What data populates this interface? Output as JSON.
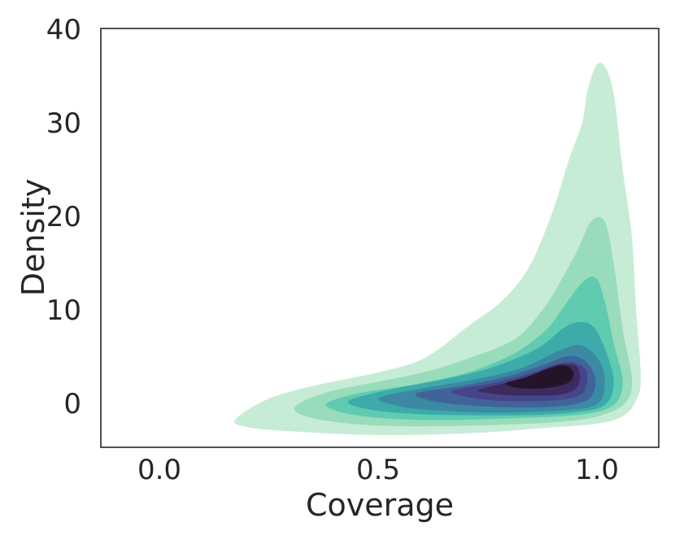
{
  "chart_data": {
    "type": "kde-2d-filled-contour",
    "title": "",
    "xlabel": "Coverage",
    "ylabel": "Density",
    "xlim": [
      -0.12,
      1.12
    ],
    "ylim": [
      -4.5,
      40
    ],
    "xticks": [
      "0.0",
      "0.5",
      "1.0"
    ],
    "yticks": [
      "0",
      "10",
      "20",
      "30",
      "40"
    ],
    "grid": false,
    "colors": [
      "#c7ecd5",
      "#98dcbb",
      "#5fcbb0",
      "#3cabaa",
      "#3b89a3",
      "#40649a",
      "#47458a",
      "#3d2a5f",
      "#24142a"
    ],
    "levels": [
      {
        "level": 1,
        "color": "#c7ecd5",
        "outline": [
          [
            0.18,
            -1.5
          ],
          [
            0.25,
            0.6
          ],
          [
            0.35,
            2.0
          ],
          [
            0.5,
            3.5
          ],
          [
            0.6,
            5.0
          ],
          [
            0.7,
            8.5
          ],
          [
            0.77,
            11.0
          ],
          [
            0.83,
            14.5
          ],
          [
            0.88,
            20.0
          ],
          [
            0.92,
            26.0
          ],
          [
            0.95,
            30.0
          ],
          [
            0.96,
            33.0
          ],
          [
            0.98,
            36.0
          ],
          [
            1.0,
            36.0
          ],
          [
            1.02,
            33.0
          ],
          [
            1.04,
            25.0
          ],
          [
            1.06,
            18.0
          ],
          [
            1.07,
            10.0
          ],
          [
            1.08,
            3.0
          ],
          [
            1.07,
            0.5
          ],
          [
            1.04,
            -1.2
          ],
          [
            0.98,
            -2.0
          ],
          [
            0.85,
            -2.5
          ],
          [
            0.7,
            -3.0
          ],
          [
            0.5,
            -3.2
          ],
          [
            0.3,
            -2.8
          ],
          [
            0.2,
            -2.3
          ]
        ]
      },
      {
        "level": 2,
        "color": "#98dcbb",
        "outline": [
          [
            0.31,
            -0.3
          ],
          [
            0.38,
            1.3
          ],
          [
            0.5,
            2.5
          ],
          [
            0.6,
            3.5
          ],
          [
            0.7,
            5.0
          ],
          [
            0.8,
            7.0
          ],
          [
            0.86,
            10.0
          ],
          [
            0.9,
            13.0
          ],
          [
            0.94,
            16.5
          ],
          [
            0.97,
            19.5
          ],
          [
            1.0,
            19.5
          ],
          [
            1.02,
            15.0
          ],
          [
            1.04,
            8.0
          ],
          [
            1.06,
            3.0
          ],
          [
            1.05,
            0.5
          ],
          [
            1.0,
            -1.0
          ],
          [
            0.9,
            -1.8
          ],
          [
            0.7,
            -2.2
          ],
          [
            0.5,
            -2.2
          ],
          [
            0.36,
            -1.5
          ]
        ]
      },
      {
        "level": 3,
        "color": "#5fcbb0",
        "outline": [
          [
            0.38,
            0.0
          ],
          [
            0.45,
            1.2
          ],
          [
            0.58,
            2.2
          ],
          [
            0.7,
            3.5
          ],
          [
            0.8,
            5.5
          ],
          [
            0.87,
            8.0
          ],
          [
            0.91,
            10.5
          ],
          [
            0.95,
            13.0
          ],
          [
            0.98,
            13.5
          ],
          [
            1.0,
            11.0
          ],
          [
            1.02,
            6.5
          ],
          [
            1.04,
            2.5
          ],
          [
            1.02,
            0.0
          ],
          [
            0.95,
            -1.0
          ],
          [
            0.8,
            -1.4
          ],
          [
            0.6,
            -1.6
          ],
          [
            0.45,
            -1.1
          ]
        ]
      },
      {
        "level": 4,
        "color": "#3cabaa",
        "outline": [
          [
            0.43,
            0.4
          ],
          [
            0.52,
            1.6
          ],
          [
            0.65,
            2.8
          ],
          [
            0.75,
            4.0
          ],
          [
            0.85,
            6.0
          ],
          [
            0.92,
            8.5
          ],
          [
            0.97,
            8.5
          ],
          [
            1.0,
            6.0
          ],
          [
            1.02,
            2.5
          ],
          [
            1.0,
            0.0
          ],
          [
            0.93,
            -0.8
          ],
          [
            0.8,
            -1.1
          ],
          [
            0.6,
            -1.0
          ],
          [
            0.48,
            -0.5
          ]
        ]
      },
      {
        "level": 5,
        "color": "#3b89a3",
        "outline": [
          [
            0.5,
            0.8
          ],
          [
            0.6,
            1.8
          ],
          [
            0.72,
            2.8
          ],
          [
            0.82,
            4.0
          ],
          [
            0.9,
            5.8
          ],
          [
            0.95,
            6.3
          ],
          [
            0.99,
            4.5
          ],
          [
            1.0,
            2.0
          ],
          [
            0.98,
            0.0
          ],
          [
            0.9,
            -0.6
          ],
          [
            0.75,
            -0.8
          ],
          [
            0.6,
            -0.5
          ],
          [
            0.53,
            0.0
          ]
        ]
      },
      {
        "level": 6,
        "color": "#40649a",
        "outline": [
          [
            0.58,
            1.2
          ],
          [
            0.68,
            2.0
          ],
          [
            0.78,
            3.0
          ],
          [
            0.86,
            4.2
          ],
          [
            0.92,
            5.2
          ],
          [
            0.96,
            4.5
          ],
          [
            0.98,
            2.5
          ],
          [
            0.96,
            0.5
          ],
          [
            0.88,
            -0.2
          ],
          [
            0.75,
            -0.2
          ],
          [
            0.63,
            0.3
          ]
        ]
      },
      {
        "level": 7,
        "color": "#47458a",
        "outline": [
          [
            0.66,
            1.5
          ],
          [
            0.75,
            2.3
          ],
          [
            0.83,
            3.3
          ],
          [
            0.89,
            4.3
          ],
          [
            0.93,
            4.5
          ],
          [
            0.96,
            3.5
          ],
          [
            0.95,
            1.2
          ],
          [
            0.89,
            0.5
          ],
          [
            0.78,
            0.4
          ],
          [
            0.7,
            0.8
          ]
        ]
      },
      {
        "level": 8,
        "color": "#3d2a5f",
        "outline": [
          [
            0.72,
            1.6
          ],
          [
            0.8,
            2.6
          ],
          [
            0.86,
            3.6
          ],
          [
            0.9,
            4.3
          ],
          [
            0.94,
            4.0
          ],
          [
            0.94,
            2.0
          ],
          [
            0.9,
            1.1
          ],
          [
            0.8,
            1.0
          ],
          [
            0.75,
            1.2
          ]
        ]
      },
      {
        "level": 9,
        "color": "#24142a",
        "outline": [
          [
            0.78,
            2.3
          ],
          [
            0.83,
            3.0
          ],
          [
            0.87,
            3.8
          ],
          [
            0.91,
            4.2
          ],
          [
            0.93,
            3.5
          ],
          [
            0.92,
            2.4
          ],
          [
            0.87,
            1.8
          ],
          [
            0.81,
            1.8
          ]
        ]
      }
    ]
  }
}
